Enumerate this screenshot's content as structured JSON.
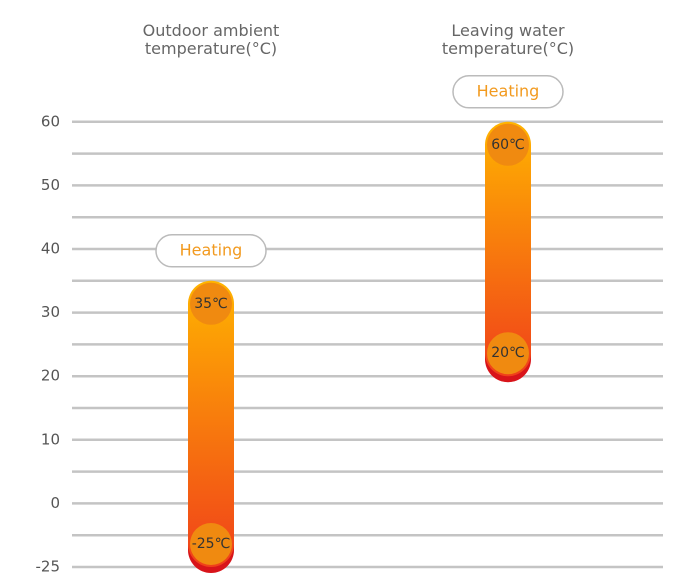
{
  "chart_data": {
    "type": "range",
    "categories": [
      "Outdoor ambient temperature(°C)",
      "Leaving water temperature(°C)"
    ],
    "values": [
      [
        -25,
        35
      ],
      [
        20,
        60
      ]
    ],
    "value_labels": [
      [
        "-25℃",
        "35℃"
      ],
      [
        "20℃",
        "60℃"
      ]
    ],
    "annotations": [
      "Heating",
      "Heating"
    ],
    "colors": {
      "top": "#ffb400",
      "bottom": "#f0401a",
      "cap": "#f08a10",
      "label": "#f29a1f"
    },
    "ylim": [
      -25,
      60
    ],
    "yticks": [
      -25,
      0,
      10,
      20,
      30,
      40,
      50,
      60
    ],
    "grid": true
  }
}
